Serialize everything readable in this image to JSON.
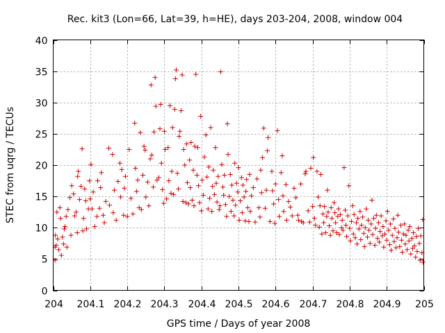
{
  "chart_data": {
    "type": "scatter",
    "title": "Rec. kit3 (Lon=66, Lat=39, h=HE), days 203-204, 2008, window 004",
    "xlabel": "GPS time / Days of year 2008",
    "ylabel": "STEC from uqrg / TECUs",
    "xlim": [
      204,
      205
    ],
    "ylim": [
      0,
      40
    ],
    "x_ticks": [
      204,
      204.1,
      204.2,
      204.3,
      204.4,
      204.5,
      204.6,
      204.7,
      204.8,
      204.9,
      205
    ],
    "x_tick_labels": [
      "204",
      "204.1",
      "204.2",
      "204.3",
      "204.4",
      "204.5",
      "204.6",
      "204.7",
      "204.8",
      "204.9",
      "205"
    ],
    "y_ticks": [
      0,
      5,
      10,
      15,
      20,
      25,
      30,
      35,
      40
    ],
    "y_tick_labels": [
      "0",
      "5",
      "10",
      "15",
      "20",
      "25",
      "30",
      "35",
      "40"
    ],
    "grid": true,
    "marker": "plus",
    "color": "#cc0000",
    "points": [
      [
        204.005,
        4.8
      ],
      [
        204.005,
        6.9
      ],
      [
        204.006,
        8.8
      ],
      [
        204.008,
        7.2
      ],
      [
        204.01,
        12.5
      ],
      [
        204.012,
        8.2
      ],
      [
        204.015,
        6.5
      ],
      [
        204.018,
        13.2
      ],
      [
        204.02,
        11.5
      ],
      [
        204.022,
        5.6
      ],
      [
        204.025,
        8.5
      ],
      [
        204.028,
        7.4
      ],
      [
        204.03,
        9.8
      ],
      [
        204.032,
        10.2
      ],
      [
        204.035,
        11.8
      ],
      [
        204.037,
        6.9
      ],
      [
        204.04,
        12.9
      ],
      [
        204.045,
        14.8
      ],
      [
        204.048,
        8.8
      ],
      [
        204.05,
        16.7
      ],
      [
        204.055,
        15.4
      ],
      [
        204.058,
        11.9
      ],
      [
        204.062,
        12.5
      ],
      [
        204.065,
        9.2
      ],
      [
        204.066,
        18.2
      ],
      [
        204.068,
        19.0
      ],
      [
        204.071,
        14.5
      ],
      [
        204.075,
        16.6
      ],
      [
        204.078,
        22.6
      ],
      [
        204.08,
        9.5
      ],
      [
        204.082,
        11.5
      ],
      [
        204.085,
        16.2
      ],
      [
        204.088,
        14.3
      ],
      [
        204.09,
        9.8
      ],
      [
        204.095,
        13.0
      ],
      [
        204.098,
        17.5
      ],
      [
        204.1,
        14.6
      ],
      [
        204.102,
        20.1
      ],
      [
        204.105,
        13.0
      ],
      [
        204.108,
        15.7
      ],
      [
        204.112,
        10.2
      ],
      [
        204.118,
        11.8
      ],
      [
        204.12,
        17.5
      ],
      [
        204.125,
        13.1
      ],
      [
        204.128,
        16.4
      ],
      [
        204.13,
        18.8
      ],
      [
        204.135,
        12.0
      ],
      [
        204.138,
        10.8
      ],
      [
        204.142,
        14.2
      ],
      [
        204.15,
        22.7
      ],
      [
        204.152,
        13.6
      ],
      [
        204.16,
        21.7
      ],
      [
        204.162,
        12.4
      ],
      [
        204.165,
        16.0
      ],
      [
        204.17,
        11.2
      ],
      [
        204.175,
        17.4
      ],
      [
        204.18,
        20.3
      ],
      [
        204.182,
        14.9
      ],
      [
        204.185,
        19.3
      ],
      [
        204.19,
        12.0
      ],
      [
        204.192,
        16.3
      ],
      [
        204.195,
        18.2
      ],
      [
        204.2,
        11.8
      ],
      [
        204.205,
        22.5
      ],
      [
        204.21,
        14.7
      ],
      [
        204.215,
        12.2
      ],
      [
        204.22,
        26.7
      ],
      [
        204.222,
        19.5
      ],
      [
        204.225,
        15.8
      ],
      [
        204.228,
        17.6
      ],
      [
        204.232,
        13.2
      ],
      [
        204.235,
        25.2
      ],
      [
        204.238,
        12.9
      ],
      [
        204.242,
        18.4
      ],
      [
        204.245,
        23.0
      ],
      [
        204.248,
        22.4
      ],
      [
        204.25,
        14.9
      ],
      [
        204.255,
        17.3
      ],
      [
        204.258,
        13.5
      ],
      [
        204.262,
        21.0
      ],
      [
        204.264,
        32.8
      ],
      [
        204.266,
        21.6
      ],
      [
        204.27,
        16.5
      ],
      [
        204.272,
        25.3
      ],
      [
        204.275,
        34.0
      ],
      [
        204.277,
        29.4
      ],
      [
        204.28,
        17.6
      ],
      [
        204.285,
        18.0
      ],
      [
        204.288,
        25.8
      ],
      [
        204.29,
        29.7
      ],
      [
        204.292,
        20.3
      ],
      [
        204.295,
        16.1
      ],
      [
        204.298,
        13.9
      ],
      [
        204.3,
        25.4
      ],
      [
        204.302,
        22.5
      ],
      [
        204.306,
        14.6
      ],
      [
        204.31,
        22.8
      ],
      [
        204.312,
        17.5
      ],
      [
        204.315,
        29.5
      ],
      [
        204.318,
        15.5
      ],
      [
        204.32,
        19.0
      ],
      [
        204.322,
        26.0
      ],
      [
        204.325,
        15.3
      ],
      [
        204.328,
        28.9
      ],
      [
        204.33,
        33.8
      ],
      [
        204.332,
        35.2
      ],
      [
        204.335,
        18.7
      ],
      [
        204.338,
        16.2
      ],
      [
        204.34,
        24.6
      ],
      [
        204.342,
        25.4
      ],
      [
        204.345,
        28.7
      ],
      [
        204.348,
        34.4
      ],
      [
        204.35,
        14.2
      ],
      [
        204.352,
        22.5
      ],
      [
        204.355,
        20.0
      ],
      [
        204.358,
        14.0
      ],
      [
        204.36,
        23.4
      ],
      [
        204.362,
        17.2
      ],
      [
        204.365,
        13.8
      ],
      [
        204.368,
        20.8
      ],
      [
        204.37,
        16.4
      ],
      [
        204.372,
        23.6
      ],
      [
        204.375,
        14.4
      ],
      [
        204.378,
        19.2
      ],
      [
        204.38,
        13.5
      ],
      [
        204.382,
        23.0
      ],
      [
        204.385,
        34.5
      ],
      [
        204.388,
        18.4
      ],
      [
        204.39,
        22.8
      ],
      [
        204.392,
        16.7
      ],
      [
        204.395,
        14.0
      ],
      [
        204.398,
        27.8
      ],
      [
        204.4,
        12.7
      ],
      [
        204.402,
        17.6
      ],
      [
        204.405,
        15.2
      ],
      [
        204.408,
        21.3
      ],
      [
        204.412,
        24.8
      ],
      [
        204.415,
        18.1
      ],
      [
        204.418,
        13.0
      ],
      [
        204.42,
        19.7
      ],
      [
        204.422,
        14.7
      ],
      [
        204.425,
        26.0
      ],
      [
        204.428,
        12.6
      ],
      [
        204.43,
        16.6
      ],
      [
        204.432,
        19.2
      ],
      [
        204.435,
        15.3
      ],
      [
        204.438,
        22.8
      ],
      [
        204.44,
        17.1
      ],
      [
        204.442,
        14.1
      ],
      [
        204.445,
        18.2
      ],
      [
        204.448,
        12.9
      ],
      [
        204.45,
        13.5
      ],
      [
        204.452,
        34.9
      ],
      [
        204.455,
        20.1
      ],
      [
        204.458,
        16.5
      ],
      [
        204.46,
        15.2
      ],
      [
        204.462,
        18.4
      ],
      [
        204.465,
        13.7
      ],
      [
        204.468,
        11.8
      ],
      [
        204.47,
        26.6
      ],
      [
        204.472,
        21.7
      ],
      [
        204.475,
        15.0
      ],
      [
        204.478,
        18.5
      ],
      [
        204.48,
        12.6
      ],
      [
        204.482,
        16.8
      ],
      [
        204.485,
        14.4
      ],
      [
        204.488,
        11.9
      ],
      [
        204.49,
        20.3
      ],
      [
        204.492,
        13.6
      ],
      [
        204.495,
        17.1
      ],
      [
        204.498,
        15.7
      ],
      [
        204.5,
        19.6
      ],
      [
        204.502,
        11.2
      ],
      [
        204.505,
        14.3
      ],
      [
        204.508,
        18.0
      ],
      [
        204.51,
        12.4
      ],
      [
        204.512,
        16.8
      ],
      [
        204.515,
        14.9
      ],
      [
        204.518,
        11.1
      ],
      [
        204.52,
        15.8
      ],
      [
        204.522,
        17.7
      ],
      [
        204.525,
        13.2
      ],
      [
        204.528,
        11.0
      ],
      [
        204.53,
        18.5
      ],
      [
        204.532,
        12.6
      ],
      [
        204.535,
        15.1
      ],
      [
        204.54,
        16.4
      ],
      [
        204.545,
        10.9
      ],
      [
        204.55,
        17.8
      ],
      [
        204.555,
        13.2
      ],
      [
        204.558,
        11.7
      ],
      [
        204.56,
        19.2
      ],
      [
        204.562,
        15.6
      ],
      [
        204.565,
        21.2
      ],
      [
        204.568,
        25.9
      ],
      [
        204.572,
        13.1
      ],
      [
        204.575,
        16.0
      ],
      [
        204.578,
        22.3
      ],
      [
        204.58,
        24.4
      ],
      [
        204.585,
        11.0
      ],
      [
        204.59,
        19.0
      ],
      [
        204.592,
        15.9
      ],
      [
        204.595,
        13.8
      ],
      [
        204.598,
        10.7
      ],
      [
        204.6,
        17.0
      ],
      [
        204.605,
        25.5
      ],
      [
        204.608,
        14.5
      ],
      [
        204.61,
        11.8
      ],
      [
        204.615,
        18.8
      ],
      [
        204.618,
        21.5
      ],
      [
        204.62,
        15.1
      ],
      [
        204.622,
        12.6
      ],
      [
        204.628,
        16.9
      ],
      [
        204.63,
        11.2
      ],
      [
        204.635,
        14.2
      ],
      [
        204.64,
        13.3
      ],
      [
        204.645,
        11.9
      ],
      [
        204.65,
        16.3
      ],
      [
        204.655,
        14.8
      ],
      [
        204.66,
        12.0
      ],
      [
        204.662,
        11.2
      ],
      [
        204.668,
        17.0
      ],
      [
        204.67,
        11.0
      ],
      [
        204.675,
        10.8
      ],
      [
        204.68,
        18.6
      ],
      [
        204.682,
        19.0
      ],
      [
        204.688,
        12.7
      ],
      [
        204.692,
        10.9
      ],
      [
        204.695,
        19.5
      ],
      [
        204.7,
        13.4
      ],
      [
        204.702,
        21.2
      ],
      [
        204.705,
        11.5
      ],
      [
        204.708,
        10.4
      ],
      [
        204.712,
        19.0
      ],
      [
        204.715,
        14.9
      ],
      [
        204.718,
        10.1
      ],
      [
        204.72,
        13.5
      ],
      [
        204.722,
        18.5
      ],
      [
        204.725,
        9.0
      ],
      [
        204.728,
        12.2
      ],
      [
        204.73,
        10.8
      ],
      [
        204.732,
        13.4
      ],
      [
        204.735,
        9.2
      ],
      [
        204.738,
        11.8
      ],
      [
        204.74,
        16.0
      ],
      [
        204.742,
        12.5
      ],
      [
        204.745,
        10.3
      ],
      [
        204.748,
        8.8
      ],
      [
        204.75,
        13.2
      ],
      [
        204.752,
        11.5
      ],
      [
        204.755,
        9.5
      ],
      [
        204.758,
        14.0
      ],
      [
        204.76,
        12.4
      ],
      [
        204.762,
        10.8
      ],
      [
        204.765,
        9.2
      ],
      [
        204.768,
        11.8
      ],
      [
        204.77,
        13.0
      ],
      [
        204.772,
        8.9
      ],
      [
        204.775,
        12.1
      ],
      [
        204.778,
        10.0
      ],
      [
        204.78,
        11.2
      ],
      [
        204.782,
        9.6
      ],
      [
        204.785,
        19.6
      ],
      [
        204.788,
        12.8
      ],
      [
        204.79,
        10.4
      ],
      [
        204.792,
        8.6
      ],
      [
        204.795,
        11.9
      ],
      [
        204.798,
        16.7
      ],
      [
        204.8,
        9.9
      ],
      [
        204.802,
        7.9
      ],
      [
        204.805,
        11.0
      ],
      [
        204.808,
        13.5
      ],
      [
        204.81,
        9.0
      ],
      [
        204.812,
        12.1
      ],
      [
        204.815,
        8.4
      ],
      [
        204.818,
        10.8
      ],
      [
        204.82,
        7.4
      ],
      [
        204.822,
        11.5
      ],
      [
        204.825,
        9.8
      ],
      [
        204.828,
        12.6
      ],
      [
        204.83,
        8.1
      ],
      [
        204.832,
        10.4
      ],
      [
        204.835,
        11.7
      ],
      [
        204.838,
        9.1
      ],
      [
        204.84,
        7.0
      ],
      [
        204.842,
        10.0
      ],
      [
        204.845,
        13.0
      ],
      [
        204.848,
        8.5
      ],
      [
        204.85,
        11.2
      ],
      [
        204.852,
        9.6
      ],
      [
        204.855,
        7.5
      ],
      [
        204.858,
        10.6
      ],
      [
        204.86,
        14.4
      ],
      [
        204.862,
        8.9
      ],
      [
        204.865,
        11.5
      ],
      [
        204.868,
        7.2
      ],
      [
        204.87,
        9.9
      ],
      [
        204.872,
        12.0
      ],
      [
        204.875,
        8.3
      ],
      [
        204.878,
        10.8
      ],
      [
        204.88,
        7.7
      ],
      [
        204.882,
        9.4
      ],
      [
        204.885,
        11.9
      ],
      [
        204.888,
        8.7
      ],
      [
        204.89,
        10.2
      ],
      [
        204.892,
        6.9
      ],
      [
        204.895,
        9.0
      ],
      [
        204.898,
        11.1
      ],
      [
        204.9,
        8.0
      ],
      [
        204.902,
        12.6
      ],
      [
        204.905,
        9.6
      ],
      [
        204.908,
        7.3
      ],
      [
        204.91,
        10.6
      ],
      [
        204.912,
        6.4
      ],
      [
        204.915,
        8.8
      ],
      [
        204.918,
        11.4
      ],
      [
        204.92,
        7.8
      ],
      [
        204.922,
        9.9
      ],
      [
        204.925,
        6.8
      ],
      [
        204.928,
        8.4
      ],
      [
        204.93,
        12.0
      ],
      [
        204.932,
        9.3
      ],
      [
        204.935,
        7.0
      ],
      [
        204.938,
        10.4
      ],
      [
        204.94,
        8.0
      ],
      [
        204.942,
        6.1
      ],
      [
        204.945,
        9.0
      ],
      [
        204.948,
        10.6
      ],
      [
        204.95,
        7.4
      ],
      [
        204.952,
        8.8
      ],
      [
        204.955,
        6.5
      ],
      [
        204.958,
        9.6
      ],
      [
        204.96,
        7.9
      ],
      [
        204.962,
        10.2
      ],
      [
        204.965,
        5.8
      ],
      [
        204.968,
        8.3
      ],
      [
        204.97,
        6.7
      ],
      [
        204.972,
        9.2
      ],
      [
        204.975,
        7.1
      ],
      [
        204.978,
        5.3
      ],
      [
        204.98,
        8.6
      ],
      [
        204.982,
        6.2
      ],
      [
        204.985,
        9.9
      ],
      [
        204.988,
        7.5
      ],
      [
        204.99,
        4.8
      ],
      [
        204.992,
        8.7
      ],
      [
        204.995,
        6.0
      ],
      [
        204.997,
        11.3
      ],
      [
        204.998,
        4.5
      ]
    ]
  }
}
